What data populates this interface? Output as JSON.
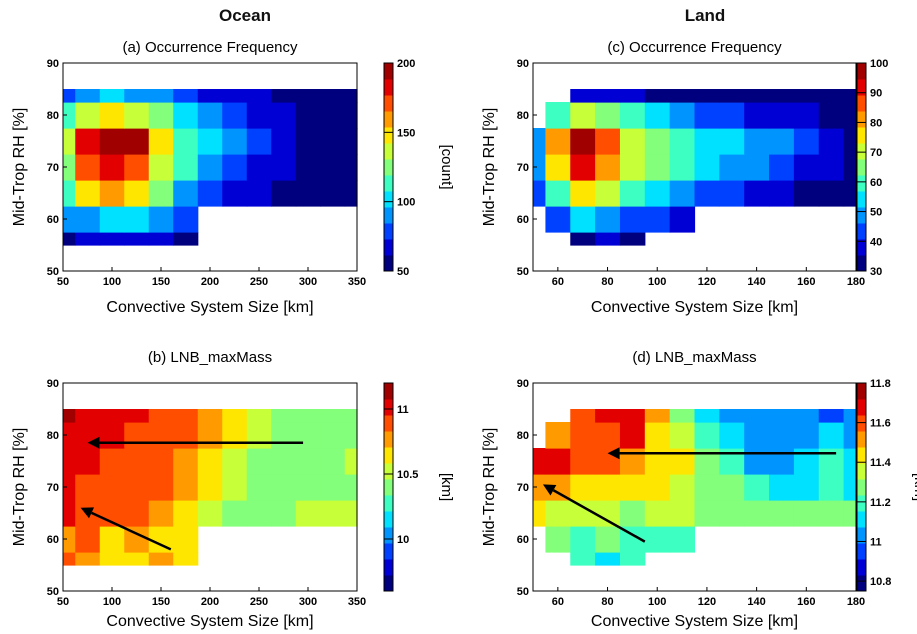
{
  "columns": {
    "ocean": "Ocean",
    "land": "Land"
  },
  "colormap": [
    "#00007f",
    "#0000d4",
    "#0040ff",
    "#0094ff",
    "#00e0ff",
    "#3dffc2",
    "#83ff7b",
    "#c7ff38",
    "#ffe600",
    "#ff9a00",
    "#ff4e00",
    "#e30000",
    "#a00000"
  ],
  "chart_data": [
    {
      "type": "heatmap",
      "title": "(a) Occurrence Frequency",
      "xlabel": "Convective System Size [km]",
      "ylabel": "Mid-Trop RH [%]",
      "xlim": [
        50,
        350
      ],
      "ylim": [
        50,
        90
      ],
      "xticks": [
        "50",
        "100",
        "150",
        "200",
        "250",
        "300",
        "350"
      ],
      "yticks": [
        "50",
        "60",
        "70",
        "80",
        "90"
      ],
      "colorbar": {
        "label": "[count]",
        "range": [
          50,
          200
        ],
        "ticks": [
          "50",
          "100",
          "150",
          "200"
        ]
      },
      "x": [
        50,
        75,
        100,
        125,
        150,
        175,
        200,
        225,
        250,
        275,
        300,
        325,
        350
      ],
      "y": [
        55,
        60,
        65,
        70,
        75,
        80,
        85
      ],
      "z": [
        [
          60,
          62,
          70,
          68,
          62,
          58,
          null,
          null,
          null,
          null,
          null,
          null,
          null
        ],
        [
          85,
          95,
          105,
          100,
          90,
          75,
          null,
          null,
          null,
          null,
          null,
          null,
          null
        ],
        [
          115,
          150,
          160,
          150,
          120,
          95,
          80,
          70,
          62,
          58,
          55,
          55,
          55
        ],
        [
          130,
          175,
          185,
          175,
          135,
          108,
          92,
          80,
          70,
          62,
          58,
          56,
          55
        ],
        [
          135,
          185,
          200,
          190,
          145,
          118,
          100,
          88,
          76,
          66,
          60,
          57,
          55
        ],
        [
          115,
          140,
          150,
          140,
          120,
          100,
          88,
          80,
          72,
          64,
          60,
          57,
          55
        ],
        [
          80,
          95,
          100,
          95,
          88,
          80,
          72,
          66,
          62,
          58,
          56,
          55,
          55
        ]
      ],
      "mask": "RH 55-65 only for sizes 50-200 km"
    },
    {
      "type": "heatmap",
      "title": "(c) Occurrence Frequency",
      "xlabel": "Convective System Size [km]",
      "ylabel": "Mid-Trop RH [%]",
      "xlim": [
        50,
        180
      ],
      "ylim": [
        50,
        90
      ],
      "xticks": [
        "60",
        "80",
        "100",
        "120",
        "140",
        "160",
        "180"
      ],
      "yticks": [
        "50",
        "60",
        "70",
        "80",
        "90"
      ],
      "colorbar": {
        "label": "",
        "range": [
          30,
          100
        ],
        "ticks": [
          "30",
          "40",
          "50",
          "60",
          "70",
          "80",
          "90",
          "100"
        ]
      },
      "x": [
        50,
        60,
        70,
        80,
        90,
        100,
        110,
        120,
        130,
        140,
        150,
        160,
        170,
        180
      ],
      "y": [
        55,
        60,
        65,
        70,
        75,
        80,
        85
      ],
      "z": [
        [
          null,
          null,
          35,
          36,
          35,
          null,
          null,
          null,
          null,
          null,
          null,
          null,
          null,
          null
        ],
        [
          null,
          45,
          52,
          50,
          46,
          42,
          38,
          null,
          null,
          null,
          null,
          null,
          null,
          null
        ],
        [
          42,
          62,
          75,
          70,
          60,
          54,
          50,
          46,
          43,
          40,
          38,
          35,
          33,
          32
        ],
        [
          50,
          78,
          92,
          82,
          70,
          63,
          57,
          53,
          50,
          47,
          45,
          40,
          36,
          33
        ],
        [
          48,
          80,
          96,
          85,
          72,
          65,
          60,
          56,
          53,
          51,
          50,
          42,
          36,
          33
        ],
        [
          null,
          58,
          70,
          66,
          58,
          54,
          50,
          46,
          43,
          40,
          38,
          36,
          34,
          32
        ],
        [
          null,
          null,
          38,
          37,
          36,
          35,
          34,
          33,
          33,
          32,
          32,
          31,
          31,
          31
        ]
      ],
      "mask": "RH 55-65 only for sizes 50-110 km"
    },
    {
      "type": "heatmap",
      "title": "(b) LNB_maxMass",
      "xlabel": "Convective System Size [km]",
      "ylabel": "Mid-Trop RH [%]",
      "xlim": [
        50,
        350
      ],
      "ylim": [
        50,
        90
      ],
      "xticks": [
        "50",
        "100",
        "150",
        "200",
        "250",
        "300",
        "350"
      ],
      "yticks": [
        "50",
        "60",
        "70",
        "80",
        "90"
      ],
      "colorbar": {
        "label": "[km]",
        "range": [
          9.6,
          11.2
        ],
        "ticks": [
          "10",
          "10.5",
          "11"
        ]
      },
      "x": [
        50,
        75,
        100,
        125,
        150,
        175,
        200,
        225,
        250,
        275,
        300,
        325,
        350
      ],
      "y": [
        55,
        60,
        65,
        70,
        75,
        80,
        85
      ],
      "z": [
        [
          10.9,
          10.8,
          10.6,
          10.7,
          10.8,
          10.7,
          null,
          null,
          null,
          null,
          null,
          null,
          null
        ],
        [
          10.8,
          10.9,
          10.7,
          10.8,
          10.7,
          10.7,
          null,
          null,
          null,
          null,
          null,
          null,
          null
        ],
        [
          11.05,
          10.95,
          10.9,
          10.85,
          10.8,
          10.7,
          10.5,
          10.45,
          10.4,
          10.4,
          10.5,
          10.5,
          10.5
        ],
        [
          11.0,
          10.95,
          10.95,
          10.9,
          10.85,
          10.75,
          10.6,
          10.5,
          10.4,
          10.35,
          10.4,
          10.45,
          10.45
        ],
        [
          11.0,
          11.0,
          10.95,
          10.95,
          10.9,
          10.8,
          10.65,
          10.5,
          10.4,
          10.35,
          10.45,
          10.45,
          10.5
        ],
        [
          11.05,
          11.0,
          11.0,
          10.95,
          10.95,
          10.85,
          10.75,
          10.6,
          10.5,
          10.45,
          10.45,
          10.45,
          10.45
        ],
        [
          11.1,
          11.05,
          11.0,
          11.0,
          10.95,
          10.85,
          10.75,
          10.6,
          10.5,
          10.45,
          10.45,
          10.45,
          10.45
        ]
      ],
      "mask": "RH 55-65 only for sizes 50-200 km",
      "annotations": [
        {
          "type": "arrow",
          "from": [
            295,
            78.5
          ],
          "to": [
            75,
            78.5
          ]
        },
        {
          "type": "arrow",
          "from": [
            160,
            58
          ],
          "to": [
            68,
            66
          ]
        }
      ]
    },
    {
      "type": "heatmap",
      "title": "(d) LNB_maxMass",
      "xlabel": "Convective System Size [km]",
      "ylabel": "Mid-Trop RH [%]",
      "xlim": [
        50,
        180
      ],
      "ylim": [
        50,
        90
      ],
      "xticks": [
        "60",
        "80",
        "100",
        "120",
        "140",
        "160",
        "180"
      ],
      "yticks": [
        "50",
        "60",
        "70",
        "80",
        "90"
      ],
      "colorbar": {
        "label": "[km]",
        "range": [
          10.75,
          11.8
        ],
        "ticks": [
          "10.8",
          "11",
          "11.2",
          "11.4",
          "11.6",
          "11.8"
        ]
      },
      "x": [
        50,
        60,
        70,
        80,
        90,
        100,
        110,
        120,
        130,
        140,
        150,
        160,
        170,
        180
      ],
      "y": [
        55,
        60,
        65,
        70,
        75,
        80,
        85
      ],
      "z": [
        [
          null,
          null,
          11.2,
          11.15,
          11.2,
          null,
          null,
          null,
          null,
          null,
          null,
          null,
          null,
          null
        ],
        [
          null,
          11.25,
          11.2,
          11.25,
          11.2,
          11.2,
          11.2,
          null,
          null,
          null,
          null,
          null,
          null,
          null
        ],
        [
          11.4,
          11.35,
          11.35,
          11.35,
          11.3,
          11.35,
          11.35,
          11.3,
          11.3,
          11.3,
          11.3,
          11.25,
          11.25,
          11.25
        ],
        [
          11.5,
          11.5,
          11.45,
          11.45,
          11.45,
          11.4,
          11.35,
          11.3,
          11.25,
          11.2,
          11.15,
          11.15,
          11.2,
          11.15
        ],
        [
          11.7,
          11.65,
          11.6,
          11.6,
          11.55,
          11.45,
          11.4,
          11.3,
          11.2,
          11.05,
          11.05,
          11.15,
          11.2,
          11.15
        ],
        [
          null,
          11.5,
          11.6,
          11.6,
          11.65,
          11.4,
          11.35,
          11.2,
          11.1,
          11.0,
          11.05,
          11.0,
          11.1,
          11.05
        ],
        [
          null,
          null,
          11.6,
          11.65,
          11.7,
          11.5,
          11.3,
          11.15,
          11.05,
          11.0,
          11.0,
          11.0,
          10.95,
          11.0
        ]
      ],
      "mask": "RH 55-65 only for sizes 50-110 km",
      "annotations": [
        {
          "type": "arrow",
          "from": [
            172,
            76.5
          ],
          "to": [
            80,
            76.5
          ]
        },
        {
          "type": "arrow",
          "from": [
            95,
            59.5
          ],
          "to": [
            54,
            70.5
          ]
        }
      ]
    }
  ]
}
